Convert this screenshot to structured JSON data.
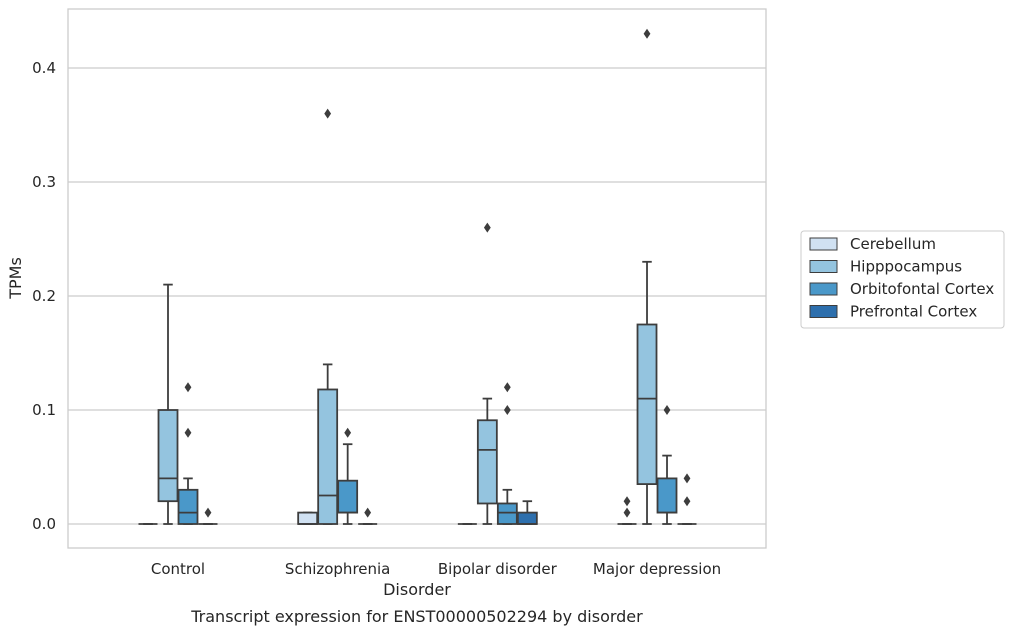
{
  "caption": "Transcript expression for ENST00000502294 by disorder",
  "chart_data": {
    "type": "box",
    "xlabel": "Disorder",
    "ylabel": "TPMs",
    "ylim": [
      -0.02,
      0.455
    ],
    "yticks": [
      "0.0",
      "0.1",
      "0.2",
      "0.3",
      "0.4"
    ],
    "grid": true,
    "legend_position": "right",
    "categories": [
      "Control",
      "Schizophrenia",
      "Bipolar disorder",
      "Major depression"
    ],
    "series": [
      {
        "name": "Cerebellum",
        "color": "#d0e1f2",
        "boxes": [
          {
            "q1": 0,
            "median": 0,
            "q3": 0,
            "whisker_low": 0,
            "whisker_high": 0,
            "outliers": []
          },
          {
            "q1": 0,
            "median": 0,
            "q3": 0.01,
            "whisker_low": 0,
            "whisker_high": 0.01,
            "outliers": []
          },
          {
            "q1": 0,
            "median": 0,
            "q3": 0,
            "whisker_low": 0,
            "whisker_high": 0,
            "outliers": []
          },
          {
            "q1": 0,
            "median": 0,
            "q3": 0,
            "whisker_low": 0,
            "whisker_high": 0,
            "outliers": [
              0.01,
              0.02
            ]
          }
        ]
      },
      {
        "name": "Hipppocampus",
        "color": "#94c4df",
        "boxes": [
          {
            "q1": 0.02,
            "median": 0.04,
            "q3": 0.1,
            "whisker_low": 0,
            "whisker_high": 0.21,
            "outliers": []
          },
          {
            "q1": 0,
            "median": 0.025,
            "q3": 0.118,
            "whisker_low": 0,
            "whisker_high": 0.14,
            "outliers": [
              0.36
            ]
          },
          {
            "q1": 0.018,
            "median": 0.065,
            "q3": 0.091,
            "whisker_low": 0,
            "whisker_high": 0.11,
            "outliers": [
              0.26
            ]
          },
          {
            "q1": 0.035,
            "median": 0.11,
            "q3": 0.175,
            "whisker_low": 0,
            "whisker_high": 0.23,
            "outliers": [
              0.43
            ]
          }
        ]
      },
      {
        "name": "Orbitofontal Cortex",
        "color": "#4a98c9",
        "boxes": [
          {
            "q1": 0,
            "median": 0.01,
            "q3": 0.03,
            "whisker_low": 0,
            "whisker_high": 0.04,
            "outliers": [
              0.08,
              0.12
            ]
          },
          {
            "q1": 0.01,
            "median": 0.01,
            "q3": 0.038,
            "whisker_low": 0,
            "whisker_high": 0.07,
            "outliers": [
              0.08
            ]
          },
          {
            "q1": 0,
            "median": 0.01,
            "q3": 0.018,
            "whisker_low": 0,
            "whisker_high": 0.03,
            "outliers": [
              0.1,
              0.12
            ]
          },
          {
            "q1": 0.01,
            "median": 0.01,
            "q3": 0.04,
            "whisker_low": 0,
            "whisker_high": 0.06,
            "outliers": [
              0.1
            ]
          }
        ]
      },
      {
        "name": "Prefrontal Cortex",
        "color": "#2d6fad",
        "boxes": [
          {
            "q1": 0,
            "median": 0,
            "q3": 0,
            "whisker_low": 0,
            "whisker_high": 0,
            "outliers": [
              0.01
            ]
          },
          {
            "q1": 0,
            "median": 0,
            "q3": 0,
            "whisker_low": 0,
            "whisker_high": 0,
            "outliers": [
              0.01
            ]
          },
          {
            "q1": 0,
            "median": 0,
            "q3": 0.01,
            "whisker_low": 0,
            "whisker_high": 0.02,
            "outliers": []
          },
          {
            "q1": 0,
            "median": 0,
            "q3": 0,
            "whisker_low": 0,
            "whisker_high": 0,
            "outliers": [
              0.02,
              0.04
            ]
          }
        ]
      }
    ]
  }
}
